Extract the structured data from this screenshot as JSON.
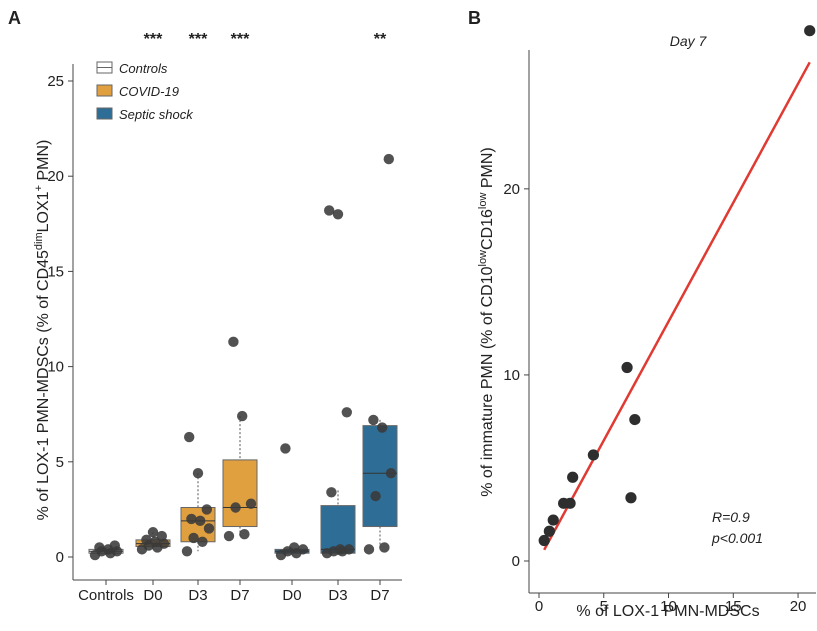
{
  "panel_a_label": "A",
  "panel_b_label": "B",
  "chart_data": [
    {
      "type": "box",
      "ylabel_main": "% of LOX-1 PMN-MDSCs  (% of CD45",
      "ylabel_sup1": "dim",
      "ylabel_mid": "LOX1",
      "ylabel_sup2": "+",
      "ylabel_end": " PMN)",
      "ylim": [
        0,
        25
      ],
      "yticks": [
        0,
        5,
        10,
        15,
        20,
        25
      ],
      "categories": [
        "Controls",
        "D0",
        "D3",
        "D7",
        "D0",
        "D3",
        "D7"
      ],
      "legend": [
        {
          "name": "Controls",
          "color": "#ffffff"
        },
        {
          "name": "COVID-19",
          "color": "#e0a040"
        },
        {
          "name": "Septic shock",
          "color": "#2e6e96"
        }
      ],
      "significance": [
        "",
        "***",
        "***",
        "***",
        "",
        "",
        "**"
      ],
      "groups": [
        {
          "group": "Controls",
          "color": "#ffffff",
          "box": {
            "min": 0.1,
            "q1": 0.2,
            "median": 0.3,
            "q3": 0.4,
            "max": 0.5
          },
          "points": [
            0.1,
            0.2,
            0.3,
            0.3,
            0.4,
            0.5,
            0.6
          ]
        },
        {
          "group": "COVID-19",
          "color": "#e0a040",
          "box": {
            "min": 0.4,
            "q1": 0.55,
            "median": 0.7,
            "q3": 0.9,
            "max": 1.3
          },
          "points": [
            0.4,
            0.5,
            0.6,
            0.7,
            0.8,
            0.9,
            1.1,
            1.3
          ]
        },
        {
          "group": "COVID-19",
          "color": "#e0a040",
          "box": {
            "min": 0.3,
            "q1": 0.8,
            "median": 1.9,
            "q3": 2.6,
            "max": 4.4
          },
          "points": [
            0.3,
            0.8,
            1.0,
            1.5,
            1.9,
            2.0,
            2.5,
            4.4,
            6.3
          ]
        },
        {
          "group": "COVID-19",
          "color": "#e0a040",
          "box": {
            "min": 1.1,
            "q1": 1.6,
            "median": 2.6,
            "q3": 5.1,
            "max": 7.4
          },
          "points": [
            1.1,
            1.2,
            2.6,
            2.8,
            7.4,
            11.3
          ]
        },
        {
          "group": "Septic shock",
          "color": "#2e6e96",
          "box": {
            "min": 0.1,
            "q1": 0.2,
            "median": 0.3,
            "q3": 0.4,
            "max": 0.5
          },
          "points": [
            0.1,
            0.2,
            0.3,
            0.4,
            0.5,
            5.7
          ]
        },
        {
          "group": "Septic shock",
          "color": "#2e6e96",
          "box": {
            "min": 0.1,
            "q1": 0.2,
            "median": 0.4,
            "q3": 2.7,
            "max": 3.5
          },
          "points": [
            0.2,
            0.3,
            0.3,
            0.4,
            0.4,
            3.4,
            7.6,
            18.0,
            18.2
          ]
        },
        {
          "group": "Septic shock",
          "color": "#2e6e96",
          "box": {
            "min": 0.5,
            "q1": 1.6,
            "median": 4.4,
            "q3": 6.9,
            "max": 7.2
          },
          "points": [
            0.4,
            0.5,
            3.2,
            4.4,
            6.8,
            7.2,
            20.9
          ]
        }
      ]
    },
    {
      "type": "scatter",
      "title": "Day 7",
      "xlabel": "% of LOX-1 PMN-MDSCs",
      "ylabel_main": "% of immature PMN (% of CD10",
      "ylabel_sup1": "low",
      "ylabel_mid": "CD16",
      "ylabel_sup2": "low",
      "ylabel_end": " PMN)",
      "xlim": [
        0,
        21
      ],
      "ylim": [
        0,
        28
      ],
      "xticks": [
        0,
        5,
        10,
        15,
        20
      ],
      "yticks": [
        0,
        10,
        20
      ],
      "points": [
        {
          "x": 0.4,
          "y": 1.1
        },
        {
          "x": 0.8,
          "y": 1.6
        },
        {
          "x": 1.1,
          "y": 2.2
        },
        {
          "x": 1.9,
          "y": 3.1
        },
        {
          "x": 2.4,
          "y": 3.1
        },
        {
          "x": 2.6,
          "y": 4.5
        },
        {
          "x": 4.2,
          "y": 5.7
        },
        {
          "x": 6.8,
          "y": 10.4
        },
        {
          "x": 7.1,
          "y": 3.4
        },
        {
          "x": 7.4,
          "y": 7.6
        },
        {
          "x": 20.9,
          "y": 28.5
        }
      ],
      "fit_line": {
        "x1": 0.4,
        "y1": 0.6,
        "x2": 20.9,
        "y2": 26.8,
        "color": "#e03a32"
      },
      "annotation_r": "R=0.9",
      "annotation_p": "p<0.001"
    }
  ]
}
